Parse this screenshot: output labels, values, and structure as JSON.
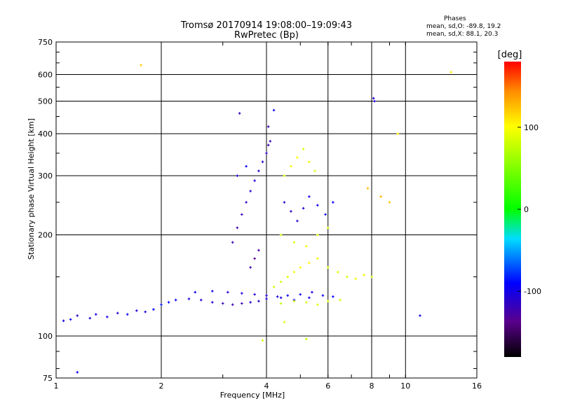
{
  "header": {
    "title_line1": "Tromsø 20170914 19:08:00–19:09:43",
    "title_line2": "RwPretec (Bp)",
    "stats_title": "Phases",
    "stats_o": "mean, sd,O: -89.8, 19.2",
    "stats_x": "mean, sd,X:  88.1, 20.3"
  },
  "chart_data": {
    "type": "scatter",
    "xlabel": "Frequency [MHz]",
    "ylabel": "Stationary phase Virtual Height [km]",
    "x_scale": "log",
    "y_scale": "log",
    "xlim": [
      1,
      16
    ],
    "ylim": [
      75,
      750
    ],
    "x_ticks": [
      1,
      2,
      4,
      6,
      8,
      10,
      16
    ],
    "x_gridlines": [
      2,
      4,
      6,
      8,
      10
    ],
    "y_ticks": [
      75,
      100,
      200,
      300,
      400,
      500,
      600,
      750
    ],
    "y_gridlines": [
      100,
      200,
      300,
      400,
      500,
      600
    ],
    "grid": true,
    "colorbar": {
      "label": "[deg]",
      "range": [
        -180,
        180
      ],
      "ticks": [
        100,
        0,
        -100
      ]
    },
    "series": [
      {
        "points": [
          [
            1.05,
            111,
            -100
          ],
          [
            1.1,
            112,
            -95
          ],
          [
            1.15,
            115,
            -110
          ],
          [
            1.25,
            113,
            -105
          ],
          [
            1.3,
            116,
            -98
          ],
          [
            1.4,
            114,
            -100
          ],
          [
            1.5,
            117,
            -108
          ],
          [
            1.6,
            116,
            -95
          ],
          [
            1.7,
            119,
            -102
          ],
          [
            1.8,
            118,
            -100
          ],
          [
            1.9,
            120,
            -90
          ],
          [
            2.0,
            124,
            -85
          ],
          [
            2.1,
            126,
            -88
          ],
          [
            2.2,
            128,
            -92
          ],
          [
            2.4,
            129,
            -100
          ],
          [
            2.6,
            128,
            -105
          ],
          [
            2.8,
            126,
            -110
          ],
          [
            3.0,
            125,
            -115
          ],
          [
            3.2,
            124,
            -120
          ],
          [
            3.4,
            125,
            -118
          ],
          [
            3.6,
            126,
            -112
          ],
          [
            3.8,
            127,
            -108
          ],
          [
            4.0,
            129,
            -105
          ],
          [
            4.3,
            131,
            -100
          ],
          [
            4.6,
            132,
            -95
          ],
          [
            5.0,
            133,
            -98
          ],
          [
            5.4,
            135,
            -100
          ]
        ]
      },
      {
        "points": [
          [
            2.5,
            135,
            -95
          ],
          [
            2.8,
            136,
            -98
          ],
          [
            3.1,
            135,
            -102
          ],
          [
            3.4,
            134,
            -105
          ],
          [
            3.7,
            133,
            -108
          ],
          [
            4.0,
            132,
            -110
          ],
          [
            4.4,
            130,
            -105
          ],
          [
            4.8,
            128,
            -100
          ],
          [
            5.3,
            130,
            -98
          ],
          [
            5.8,
            132,
            -95
          ],
          [
            6.2,
            131,
            -92
          ]
        ]
      },
      {
        "points": [
          [
            3.2,
            190,
            -120
          ],
          [
            3.3,
            210,
            -125
          ],
          [
            3.4,
            230,
            -118
          ],
          [
            3.5,
            250,
            -115
          ],
          [
            3.6,
            270,
            -110
          ],
          [
            3.7,
            290,
            -105
          ],
          [
            3.8,
            310,
            -108
          ],
          [
            3.9,
            330,
            -112
          ],
          [
            4.0,
            350,
            -115
          ],
          [
            4.05,
            370,
            -120
          ],
          [
            4.1,
            380,
            -118
          ],
          [
            3.6,
            160,
            -125
          ],
          [
            3.7,
            170,
            -130
          ],
          [
            3.8,
            180,
            -128
          ],
          [
            3.3,
            300,
            -100
          ],
          [
            3.5,
            320,
            -95
          ],
          [
            4.5,
            250,
            -110
          ],
          [
            4.7,
            235,
            -115
          ],
          [
            4.9,
            220,
            -112
          ],
          [
            5.1,
            240,
            -105
          ],
          [
            5.3,
            260,
            -100
          ],
          [
            5.6,
            245,
            -95
          ],
          [
            5.9,
            230,
            -98
          ],
          [
            6.2,
            250,
            -92
          ]
        ]
      },
      {
        "points": [
          [
            4.2,
            140,
            80
          ],
          [
            4.4,
            145,
            85
          ],
          [
            4.6,
            150,
            90
          ],
          [
            4.8,
            155,
            95
          ],
          [
            5.0,
            160,
            100
          ],
          [
            5.3,
            165,
            105
          ],
          [
            5.6,
            170,
            95
          ],
          [
            6.0,
            160,
            88
          ],
          [
            6.4,
            155,
            90
          ],
          [
            6.8,
            150,
            85
          ],
          [
            7.2,
            148,
            92
          ],
          [
            7.6,
            152,
            95
          ],
          [
            8.0,
            150,
            80
          ],
          [
            4.5,
            300,
            90
          ],
          [
            4.7,
            320,
            95
          ],
          [
            4.9,
            340,
            100
          ],
          [
            5.1,
            360,
            88
          ],
          [
            5.3,
            330,
            92
          ],
          [
            5.5,
            310,
            85
          ],
          [
            4.4,
            200,
            80
          ],
          [
            4.8,
            190,
            88
          ],
          [
            5.2,
            185,
            95
          ],
          [
            5.6,
            200,
            90
          ],
          [
            6.0,
            210,
            85
          ],
          [
            4.4,
            125,
            75
          ],
          [
            4.8,
            127,
            80
          ],
          [
            5.2,
            126,
            85
          ],
          [
            5.6,
            124,
            90
          ],
          [
            6.0,
            127,
            88
          ],
          [
            6.5,
            128,
            82
          ]
        ]
      },
      {
        "points": [
          [
            1.75,
            640,
            120
          ],
          [
            8.1,
            510,
            -110
          ],
          [
            8.15,
            500,
            -105
          ],
          [
            3.35,
            460,
            -115
          ],
          [
            4.2,
            470,
            -100
          ],
          [
            4.05,
            420,
            -120
          ],
          [
            13.5,
            610,
            110
          ],
          [
            11.0,
            115,
            -100
          ],
          [
            1.15,
            78,
            -95
          ],
          [
            3.9,
            97,
            80
          ],
          [
            5.2,
            98,
            75
          ],
          [
            4.5,
            110,
            85
          ],
          [
            9.5,
            400,
            110
          ],
          [
            9.0,
            250,
            120
          ],
          [
            8.5,
            260,
            130
          ],
          [
            7.8,
            275,
            125
          ]
        ]
      }
    ]
  }
}
